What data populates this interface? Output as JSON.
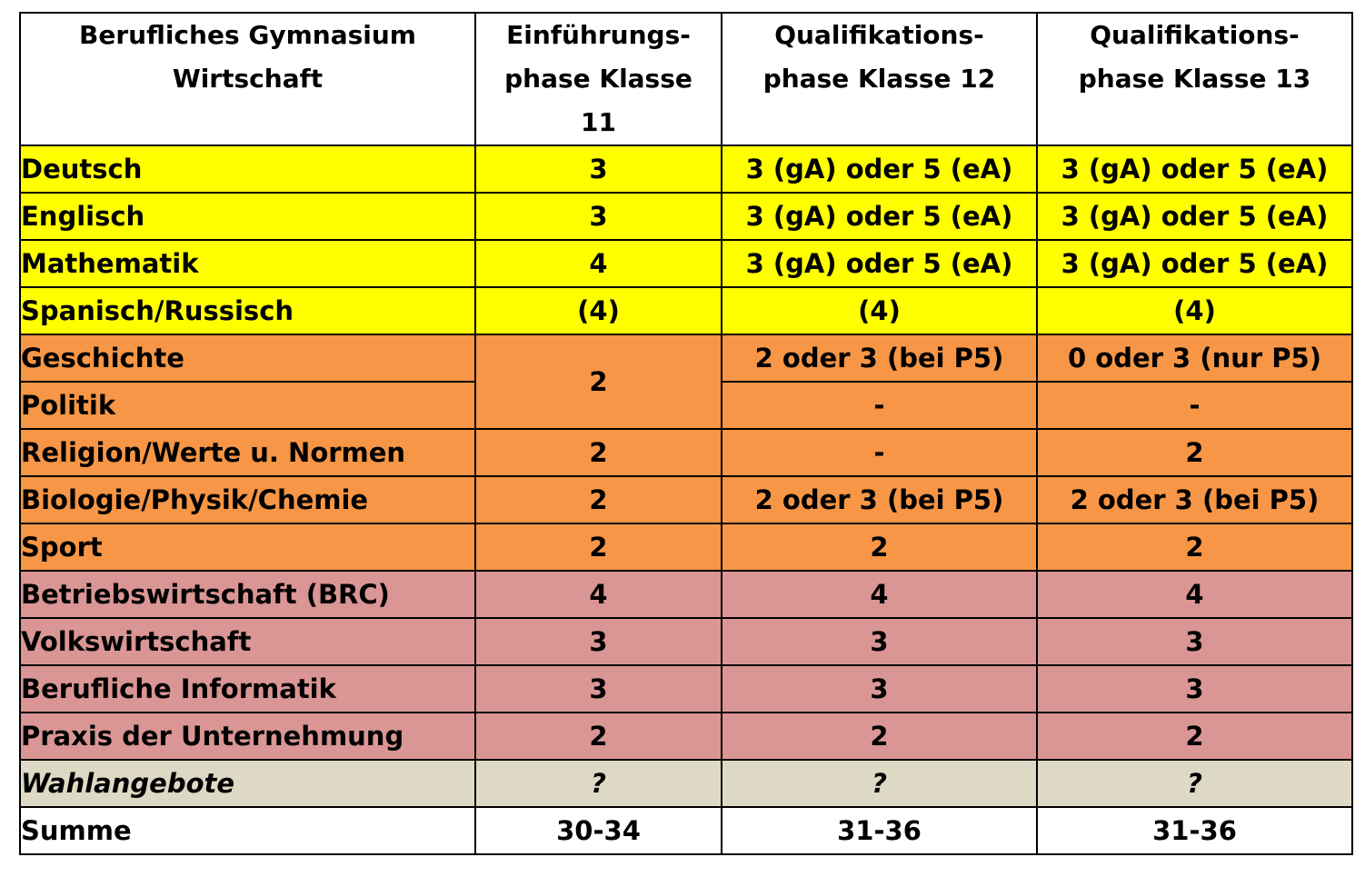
{
  "header": {
    "col1_line1": "Berufliches Gymnasium",
    "col1_line2": "Wirtschaft",
    "col2_line1": "Einführungs-",
    "col2_line2": "phase Klasse",
    "col2_line3": "11",
    "col3_line1": "Qualifikations-",
    "col3_line2": "phase Klasse 12",
    "col4_line1": "Qualifikations-",
    "col4_line2": "phase Klasse 13"
  },
  "rows": [
    {
      "subject": "Deutsch",
      "k11": "3",
      "k12": "3 (gA) oder 5 (eA)",
      "k13": "3 (gA) oder 5 (eA)"
    },
    {
      "subject": "Englisch",
      "k11": "3",
      "k12": "3 (gA) oder 5 (eA)",
      "k13": "3 (gA) oder 5 (eA)"
    },
    {
      "subject": "Mathematik",
      "k11": "4",
      "k12": "3 (gA) oder 5 (eA)",
      "k13": "3 (gA) oder 5 (eA)"
    },
    {
      "subject": "Spanisch/Russisch",
      "k11": "(4)",
      "k12": "(4)",
      "k13": "(4)"
    },
    {
      "subject": "Geschichte",
      "k11": "2",
      "k12": "2 oder 3 (bei P5)",
      "k13": "0 oder 3 (nur P5)"
    },
    {
      "subject": "Politik",
      "k11": "",
      "k12": "-",
      "k13": "-"
    },
    {
      "subject": "Religion/Werte u. Normen",
      "k11": "2",
      "k12": "-",
      "k13": "2"
    },
    {
      "subject": "Biologie/Physik/Chemie",
      "k11": "2",
      "k12": "2 oder 3 (bei P5)",
      "k13": "2 oder 3 (bei P5)"
    },
    {
      "subject": "Sport",
      "k11": "2",
      "k12": "2",
      "k13": "2"
    },
    {
      "subject": "Betriebswirtschaft (BRC)",
      "k11": "4",
      "k12": "4",
      "k13": "4"
    },
    {
      "subject": "Volkswirtschaft",
      "k11": "3",
      "k12": "3",
      "k13": "3"
    },
    {
      "subject": "Berufliche Informatik",
      "k11": "3",
      "k12": "3",
      "k13": "3"
    },
    {
      "subject": "Praxis der Unternehmung",
      "k11": "2",
      "k12": "2",
      "k13": "2"
    },
    {
      "subject": "Wahlangebote",
      "k11": "?",
      "k12": "?",
      "k13": "?"
    },
    {
      "subject": "Summe",
      "k11": "30-34",
      "k12": "31-36",
      "k13": "31-36"
    }
  ],
  "colors": {
    "core_subjects": "#ffff00",
    "social_science_and_general": "#f79646",
    "business_profile": "#da9694",
    "electives": "#ddd9c4",
    "sum": "#ffffff"
  }
}
